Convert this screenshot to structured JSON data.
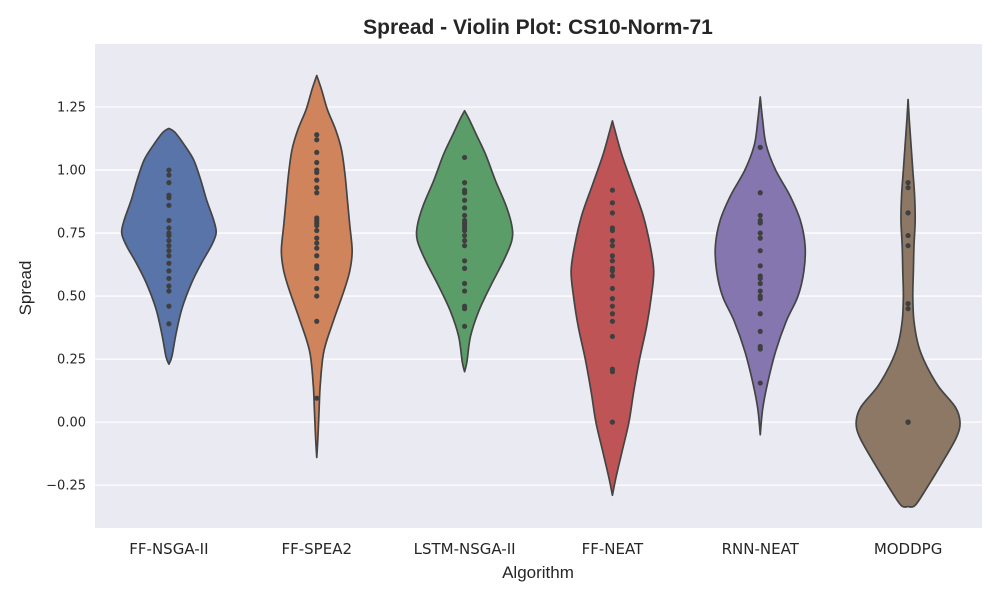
{
  "chart_data": {
    "type": "violin",
    "title": "Spread - Violin Plot: CS10-Norm-71",
    "xlabel": "Algorithm",
    "ylabel": "Spread",
    "ylim": [
      -0.42,
      1.5
    ],
    "yticks": [
      -0.25,
      0.0,
      0.25,
      0.5,
      0.75,
      1.0,
      1.25
    ],
    "ytick_labels": [
      "−0.25",
      "0.00",
      "0.25",
      "0.50",
      "0.75",
      "1.00",
      "1.25"
    ],
    "grid": true,
    "categories": [
      "FF-NSGA-II",
      "FF-SPEA2",
      "LSTM-NSGA-II",
      "FF-NEAT",
      "RNN-NEAT",
      "MODDPG"
    ],
    "colors": [
      "#5874a8",
      "#cf845c",
      "#5b9d68",
      "#bf5457",
      "#8576b0",
      "#8c7865"
    ],
    "series": [
      {
        "name": "FF-NSGA-II",
        "points": [
          0.39,
          0.46,
          0.52,
          0.54,
          0.57,
          0.6,
          0.63,
          0.66,
          0.68,
          0.7,
          0.72,
          0.74,
          0.75,
          0.77,
          0.8,
          0.86,
          0.89,
          0.9,
          0.95,
          0.98,
          1.0
        ],
        "profile": [
          [
            0.23,
            0.0
          ],
          [
            0.26,
            0.05
          ],
          [
            0.35,
            0.12
          ],
          [
            0.45,
            0.22
          ],
          [
            0.55,
            0.38
          ],
          [
            0.63,
            0.55
          ],
          [
            0.7,
            0.72
          ],
          [
            0.75,
            0.8
          ],
          [
            0.8,
            0.76
          ],
          [
            0.88,
            0.64
          ],
          [
            0.96,
            0.54
          ],
          [
            1.04,
            0.42
          ],
          [
            1.1,
            0.26
          ],
          [
            1.15,
            0.1
          ],
          [
            1.165,
            0.0
          ]
        ]
      },
      {
        "name": "FF-SPEA2",
        "points": [
          0.095,
          0.4,
          0.5,
          0.53,
          0.57,
          0.61,
          0.62,
          0.66,
          0.69,
          0.71,
          0.73,
          0.76,
          0.78,
          0.79,
          0.8,
          0.81,
          0.91,
          0.93,
          0.96,
          0.99,
          1.0,
          1.03,
          1.07,
          1.12,
          1.14
        ],
        "profile": [
          [
            -0.14,
            0.0
          ],
          [
            -0.06,
            0.02
          ],
          [
            0.05,
            0.04
          ],
          [
            0.15,
            0.06
          ],
          [
            0.28,
            0.12
          ],
          [
            0.4,
            0.28
          ],
          [
            0.52,
            0.46
          ],
          [
            0.6,
            0.56
          ],
          [
            0.68,
            0.6
          ],
          [
            0.78,
            0.56
          ],
          [
            0.88,
            0.52
          ],
          [
            0.98,
            0.48
          ],
          [
            1.08,
            0.42
          ],
          [
            1.16,
            0.32
          ],
          [
            1.24,
            0.18
          ],
          [
            1.32,
            0.08
          ],
          [
            1.375,
            0.0
          ]
        ]
      },
      {
        "name": "LSTM-NSGA-II",
        "points": [
          0.38,
          0.45,
          0.46,
          0.52,
          0.55,
          0.61,
          0.64,
          0.7,
          0.72,
          0.74,
          0.76,
          0.77,
          0.78,
          0.79,
          0.8,
          0.82,
          0.85,
          0.88,
          0.91,
          0.92,
          0.95,
          1.05
        ],
        "profile": [
          [
            0.2,
            0.0
          ],
          [
            0.24,
            0.04
          ],
          [
            0.34,
            0.1
          ],
          [
            0.44,
            0.24
          ],
          [
            0.54,
            0.44
          ],
          [
            0.64,
            0.66
          ],
          [
            0.72,
            0.8
          ],
          [
            0.78,
            0.8
          ],
          [
            0.86,
            0.7
          ],
          [
            0.96,
            0.52
          ],
          [
            1.06,
            0.36
          ],
          [
            1.14,
            0.2
          ],
          [
            1.2,
            0.08
          ],
          [
            1.235,
            0.0
          ]
        ]
      },
      {
        "name": "FF-NEAT",
        "points": [
          0.0,
          0.2,
          0.21,
          0.34,
          0.4,
          0.43,
          0.46,
          0.49,
          0.53,
          0.58,
          0.6,
          0.61,
          0.64,
          0.66,
          0.7,
          0.72,
          0.76,
          0.77,
          0.83,
          0.87,
          0.92
        ],
        "profile": [
          [
            -0.29,
            0.0
          ],
          [
            -0.22,
            0.06
          ],
          [
            -0.12,
            0.16
          ],
          [
            0.0,
            0.28
          ],
          [
            0.12,
            0.36
          ],
          [
            0.25,
            0.46
          ],
          [
            0.38,
            0.58
          ],
          [
            0.5,
            0.66
          ],
          [
            0.6,
            0.7
          ],
          [
            0.7,
            0.64
          ],
          [
            0.82,
            0.52
          ],
          [
            0.94,
            0.34
          ],
          [
            1.06,
            0.16
          ],
          [
            1.16,
            0.04
          ],
          [
            1.195,
            0.0
          ]
        ]
      },
      {
        "name": "RNN-NEAT",
        "points": [
          0.155,
          0.29,
          0.3,
          0.36,
          0.43,
          0.49,
          0.5,
          0.52,
          0.55,
          0.57,
          0.58,
          0.62,
          0.68,
          0.73,
          0.75,
          0.79,
          0.8,
          0.82,
          0.91,
          1.09
        ],
        "profile": [
          [
            -0.05,
            0.0
          ],
          [
            0.05,
            0.04
          ],
          [
            0.15,
            0.12
          ],
          [
            0.28,
            0.26
          ],
          [
            0.4,
            0.44
          ],
          [
            0.5,
            0.64
          ],
          [
            0.6,
            0.74
          ],
          [
            0.7,
            0.76
          ],
          [
            0.8,
            0.68
          ],
          [
            0.9,
            0.5
          ],
          [
            1.0,
            0.26
          ],
          [
            1.1,
            0.1
          ],
          [
            1.2,
            0.04
          ],
          [
            1.29,
            0.0
          ]
        ]
      },
      {
        "name": "MODDPG",
        "points": [
          0.0,
          0.0,
          0.0,
          0.45,
          0.47,
          0.7,
          0.74,
          0.83,
          0.93,
          0.95
        ],
        "profile": [
          [
            -0.335,
            0.0
          ],
          [
            -0.33,
            0.12
          ],
          [
            -0.26,
            0.32
          ],
          [
            -0.16,
            0.58
          ],
          [
            -0.06,
            0.82
          ],
          [
            0.0,
            0.88
          ],
          [
            0.06,
            0.8
          ],
          [
            0.14,
            0.52
          ],
          [
            0.22,
            0.32
          ],
          [
            0.3,
            0.18
          ],
          [
            0.4,
            0.1
          ],
          [
            0.5,
            0.08
          ],
          [
            0.6,
            0.09
          ],
          [
            0.7,
            0.1
          ],
          [
            0.8,
            0.12
          ],
          [
            0.9,
            0.11
          ],
          [
            1.0,
            0.08
          ],
          [
            1.1,
            0.05
          ],
          [
            1.2,
            0.02
          ],
          [
            1.28,
            0.0
          ]
        ]
      }
    ]
  }
}
